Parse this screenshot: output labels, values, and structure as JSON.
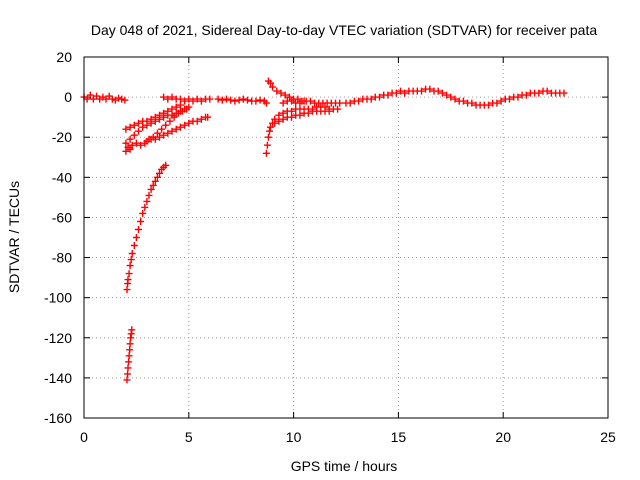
{
  "chart_data": {
    "type": "scatter",
    "title": "Day 048 of 2021, Sidereal Day-to-day VTEC variation (SDTVAR) for receiver pata",
    "xlabel": "GPS time / hours",
    "ylabel": "SDTVAR / TECUs",
    "xlim": [
      0,
      25
    ],
    "ylim": [
      -160,
      20
    ],
    "xticks": [
      0,
      5,
      10,
      15,
      20,
      25
    ],
    "yticks": [
      20,
      0,
      -20,
      -40,
      -60,
      -80,
      -100,
      -120,
      -140,
      -160
    ],
    "grid": true,
    "marker": "plus",
    "color": "#ff0000",
    "series": [
      {
        "points": [
          [
            0.0,
            0
          ],
          [
            0.15,
            -1
          ],
          [
            0.3,
            1
          ],
          [
            0.45,
            -1
          ],
          [
            0.6,
            0.5
          ],
          [
            0.75,
            -1
          ],
          [
            0.9,
            0
          ],
          [
            1.05,
            -1
          ],
          [
            1.2,
            0.5
          ],
          [
            1.35,
            -1
          ],
          [
            1.5,
            -1.5
          ],
          [
            1.65,
            -0.5
          ],
          [
            1.8,
            -1
          ],
          [
            1.95,
            -1.5
          ],
          [
            2.05,
            -96
          ],
          [
            2.08,
            -93
          ],
          [
            2.1,
            -91
          ],
          [
            2.15,
            -88
          ],
          [
            2.2,
            -84
          ],
          [
            2.25,
            -81
          ],
          [
            2.3,
            -78
          ],
          [
            2.4,
            -74
          ],
          [
            2.5,
            -70
          ],
          [
            2.6,
            -66
          ],
          [
            2.7,
            -62
          ],
          [
            2.8,
            -58
          ],
          [
            2.9,
            -55
          ],
          [
            3.0,
            -52
          ],
          [
            3.1,
            -49
          ],
          [
            3.2,
            -46
          ],
          [
            3.3,
            -44
          ],
          [
            3.4,
            -42
          ],
          [
            3.5,
            -40
          ],
          [
            3.6,
            -38
          ],
          [
            3.7,
            -36
          ],
          [
            3.8,
            -35
          ],
          [
            3.9,
            -34
          ],
          [
            2.05,
            -141
          ],
          [
            2.08,
            -138
          ],
          [
            2.1,
            -135
          ],
          [
            2.13,
            -132
          ],
          [
            2.15,
            -129
          ],
          [
            2.18,
            -126
          ],
          [
            2.2,
            -123
          ],
          [
            2.23,
            -120
          ],
          [
            2.25,
            -118
          ],
          [
            2.28,
            -116
          ],
          [
            2.0,
            -27
          ],
          [
            2.1,
            -25
          ],
          [
            2.2,
            -26
          ],
          [
            2.3,
            -24
          ],
          [
            2.5,
            -23
          ],
          [
            2.7,
            -24
          ],
          [
            2.9,
            -23
          ],
          [
            3.1,
            -21
          ],
          [
            3.3,
            -20
          ],
          [
            3.5,
            -18
          ],
          [
            3.7,
            -16
          ],
          [
            3.9,
            -14
          ],
          [
            4.1,
            -12
          ],
          [
            4.3,
            -10
          ],
          [
            4.5,
            -8
          ],
          [
            4.7,
            -7
          ],
          [
            4.9,
            -6
          ],
          [
            5.0,
            -5
          ],
          [
            2.0,
            -23
          ],
          [
            2.2,
            -21
          ],
          [
            2.4,
            -19
          ],
          [
            2.6,
            -17
          ],
          [
            2.8,
            -15
          ],
          [
            3.0,
            -14
          ],
          [
            3.2,
            -13
          ],
          [
            3.4,
            -12
          ],
          [
            3.6,
            -11
          ],
          [
            3.8,
            -10
          ],
          [
            4.0,
            -9
          ],
          [
            4.2,
            -9
          ],
          [
            4.4,
            -8
          ],
          [
            4.6,
            -7
          ],
          [
            4.8,
            -6
          ],
          [
            2.0,
            -16
          ],
          [
            2.2,
            -15
          ],
          [
            2.4,
            -14
          ],
          [
            2.6,
            -13
          ],
          [
            2.8,
            -12
          ],
          [
            3.0,
            -12
          ],
          [
            3.2,
            -11
          ],
          [
            3.4,
            -10
          ],
          [
            3.6,
            -9
          ],
          [
            3.8,
            -8
          ],
          [
            4.0,
            -7
          ],
          [
            4.2,
            -6
          ],
          [
            4.4,
            -5
          ],
          [
            4.6,
            -4
          ],
          [
            3.0,
            -22
          ],
          [
            3.2,
            -21
          ],
          [
            3.4,
            -21
          ],
          [
            3.6,
            -20
          ],
          [
            3.8,
            -19
          ],
          [
            4.0,
            -18
          ],
          [
            4.2,
            -17
          ],
          [
            4.4,
            -16
          ],
          [
            4.6,
            -15
          ],
          [
            4.8,
            -14
          ],
          [
            5.0,
            -13
          ],
          [
            5.2,
            -12
          ],
          [
            5.4,
            -12
          ],
          [
            5.6,
            -11
          ],
          [
            5.8,
            -10
          ],
          [
            5.9,
            -10
          ],
          [
            3.8,
            0
          ],
          [
            4.0,
            -1
          ],
          [
            4.2,
            0
          ],
          [
            4.4,
            -1
          ],
          [
            4.6,
            -1
          ],
          [
            4.8,
            -2
          ],
          [
            5.0,
            -1
          ],
          [
            5.2,
            -2
          ],
          [
            5.4,
            -1
          ],
          [
            5.6,
            -2
          ],
          [
            5.8,
            -1
          ],
          [
            6.0,
            -1
          ],
          [
            6.4,
            -1
          ],
          [
            6.6,
            -1.5
          ],
          [
            6.8,
            -1
          ],
          [
            7.0,
            -1.5
          ],
          [
            7.2,
            -2
          ],
          [
            7.4,
            -1.5
          ],
          [
            7.6,
            -1
          ],
          [
            7.8,
            -1.5
          ],
          [
            8.0,
            -2
          ],
          [
            8.2,
            -2
          ],
          [
            8.4,
            -1.5
          ],
          [
            8.6,
            -2
          ],
          [
            8.7,
            -3
          ],
          [
            8.8,
            8
          ],
          [
            8.9,
            7
          ],
          [
            9.0,
            5
          ],
          [
            9.2,
            3
          ],
          [
            9.4,
            2
          ],
          [
            9.6,
            1
          ],
          [
            9.8,
            0
          ],
          [
            10.0,
            -1
          ],
          [
            10.2,
            -1
          ],
          [
            10.4,
            -2
          ],
          [
            10.6,
            -2
          ],
          [
            10.8,
            -2
          ],
          [
            11.0,
            -3
          ],
          [
            11.2,
            -3
          ],
          [
            11.4,
            -3
          ],
          [
            11.6,
            -3
          ],
          [
            11.8,
            -3
          ],
          [
            12.0,
            -3
          ],
          [
            12.2,
            -3
          ],
          [
            12.5,
            -3
          ],
          [
            8.7,
            -28
          ],
          [
            8.75,
            -24
          ],
          [
            8.8,
            -20
          ],
          [
            8.85,
            -17
          ],
          [
            8.9,
            -15
          ],
          [
            9.0,
            -13
          ],
          [
            9.1,
            -11
          ],
          [
            9.3,
            -9
          ],
          [
            9.5,
            -8
          ],
          [
            9.7,
            -7
          ],
          [
            9.9,
            -7
          ],
          [
            10.1,
            -6
          ],
          [
            10.3,
            -6
          ],
          [
            10.5,
            -6
          ],
          [
            10.7,
            -6
          ],
          [
            10.9,
            -6
          ],
          [
            11.1,
            -5
          ],
          [
            11.3,
            -5
          ],
          [
            11.5,
            -5
          ],
          [
            11.7,
            -6
          ],
          [
            11.9,
            -6
          ],
          [
            8.9,
            -15
          ],
          [
            9.1,
            -13
          ],
          [
            9.3,
            -12
          ],
          [
            9.5,
            -11
          ],
          [
            9.7,
            -10
          ],
          [
            9.9,
            -10
          ],
          [
            10.1,
            -9
          ],
          [
            10.3,
            -9
          ],
          [
            10.5,
            -8
          ],
          [
            10.7,
            -8
          ],
          [
            10.9,
            -7
          ],
          [
            11.1,
            -7
          ],
          [
            11.3,
            -7
          ],
          [
            11.5,
            -7
          ],
          [
            11.7,
            -7
          ],
          [
            11.9,
            -6
          ],
          [
            12.1,
            -6
          ],
          [
            9.5,
            -3
          ],
          [
            9.7,
            -2
          ],
          [
            9.9,
            -2
          ],
          [
            10.1,
            -3
          ],
          [
            10.3,
            -3
          ],
          [
            10.5,
            -2
          ],
          [
            12.7,
            -3
          ],
          [
            12.9,
            -2
          ],
          [
            13.1,
            -2
          ],
          [
            13.3,
            -1
          ],
          [
            13.5,
            -1
          ],
          [
            13.7,
            -1
          ],
          [
            13.9,
            0
          ],
          [
            14.1,
            0
          ],
          [
            14.3,
            1
          ],
          [
            14.5,
            1
          ],
          [
            14.7,
            2
          ],
          [
            14.9,
            2
          ],
          [
            15.1,
            3
          ],
          [
            15.3,
            2
          ],
          [
            15.5,
            3
          ],
          [
            15.7,
            3
          ],
          [
            15.9,
            3
          ],
          [
            16.1,
            3
          ],
          [
            16.3,
            4
          ],
          [
            16.5,
            4
          ],
          [
            16.7,
            3
          ],
          [
            16.9,
            3
          ],
          [
            17.1,
            2
          ],
          [
            17.3,
            1
          ],
          [
            17.5,
            0
          ],
          [
            17.7,
            -1
          ],
          [
            17.9,
            -2
          ],
          [
            18.1,
            -2
          ],
          [
            18.3,
            -3
          ],
          [
            18.5,
            -3
          ],
          [
            18.7,
            -4
          ],
          [
            18.9,
            -4
          ],
          [
            19.1,
            -4
          ],
          [
            19.3,
            -4
          ],
          [
            19.5,
            -3
          ],
          [
            19.7,
            -3
          ],
          [
            19.9,
            -2
          ],
          [
            20.1,
            -1
          ],
          [
            20.3,
            -1
          ],
          [
            20.5,
            0
          ],
          [
            20.7,
            0
          ],
          [
            20.9,
            1
          ],
          [
            21.1,
            1
          ],
          [
            21.3,
            2
          ],
          [
            21.5,
            2
          ],
          [
            21.7,
            2
          ],
          [
            21.9,
            3
          ],
          [
            22.1,
            3
          ],
          [
            22.3,
            2
          ],
          [
            22.5,
            2
          ],
          [
            22.7,
            2
          ],
          [
            22.9,
            2
          ]
        ]
      }
    ]
  }
}
